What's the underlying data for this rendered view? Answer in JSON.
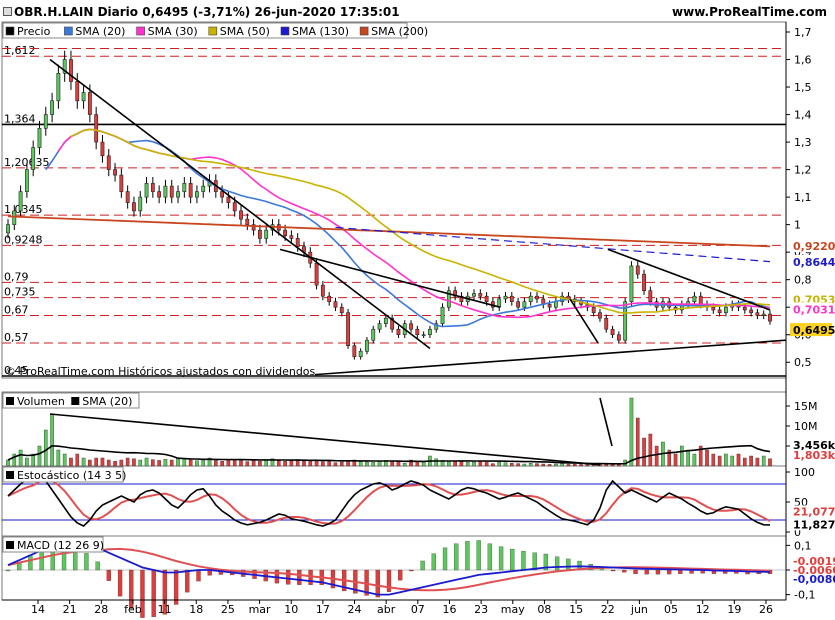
{
  "header": {
    "title": "OBR.H.LAIN Diario 0,6495 (-3,71%) 26-jun-2020 17:35:01",
    "site": "www.ProRealTime.com"
  },
  "price_panel": {
    "legend": [
      {
        "label": "Precio",
        "color": "#000000"
      },
      {
        "label": "SMA (20)",
        "color": "#3c78d8"
      },
      {
        "label": "SMA (30)",
        "color": "#ff33cc"
      },
      {
        "label": "SMA (50)",
        "color": "#c8b400"
      },
      {
        "label": "SMA (130)",
        "color": "#1a1ad0"
      },
      {
        "label": "SMA (200)",
        "color": "#c8461e"
      }
    ],
    "footnote": "© ProRealTime.com  Históricos ajustados con dividendos",
    "left_labels": [
      "1,612",
      "1,364",
      "1,20635",
      "1,0345",
      "0,9248",
      "0,79",
      "0,735",
      "0,67",
      "0,57",
      "0,45"
    ],
    "right_ticks": [
      "1,7",
      "1,6",
      "1,5",
      "1,4",
      "1,3",
      "1,2",
      "1,1",
      "1",
      "0,9",
      "0,8",
      "0,7",
      "0,6",
      "0,5"
    ],
    "tags": [
      {
        "text": "0,9220",
        "color": "#c8461e"
      },
      {
        "text": "0,8644",
        "color": "#1a1ad0"
      },
      {
        "text": "0,7053",
        "color": "#c8b400"
      },
      {
        "text": "0,7031",
        "color": "#ff33cc"
      },
      {
        "text": "0,6495",
        "color": "#000000",
        "bg": "#ffd21e"
      }
    ]
  },
  "volume_panel": {
    "legend": [
      {
        "label": "Volumen",
        "color": "#000000"
      },
      {
        "label": "SMA (20)",
        "color": "#000000"
      }
    ],
    "right_ticks": [
      "15M",
      "10M",
      "5M"
    ],
    "tags": [
      {
        "text": "3,456k",
        "color": "#000000"
      },
      {
        "text": "1,803k",
        "color": "#e03c3c"
      }
    ]
  },
  "stoch_panel": {
    "legend": [
      {
        "label": "Estocástico (14 3 5)",
        "color": "#000000"
      }
    ],
    "right_ticks": [
      "100",
      "50",
      "0"
    ],
    "tags": [
      {
        "text": "21,077",
        "color": "#e03c3c"
      },
      {
        "text": "11,827",
        "color": "#000000"
      }
    ]
  },
  "macd_panel": {
    "legend": [
      {
        "label": "MACD (12 26 9)",
        "color": "#000000"
      }
    ],
    "right_ticks": [
      "0,1",
      "0",
      "-0,1"
    ],
    "tags": [
      {
        "text": "-0,0019",
        "color": "#e03c3c"
      },
      {
        "text": "-0,0060",
        "color": "#e03c3c"
      },
      {
        "text": "-0,0080",
        "color": "#1a1ad0"
      }
    ]
  },
  "x_axis": [
    "14",
    "21",
    "28",
    "feb",
    "11",
    "18",
    "25",
    "mar",
    "10",
    "17",
    "24",
    "abr",
    "07",
    "16",
    "23",
    "may",
    "08",
    "15",
    "22",
    "jun",
    "05",
    "12",
    "19",
    "26"
  ],
  "chart_data": {
    "type": "candlestick",
    "title": "OBR.H.LAIN Diario",
    "ylim": [
      0.45,
      1.7
    ],
    "horizontal_levels": [
      1.612,
      1.364,
      1.20635,
      1.0345,
      0.9248,
      0.79,
      0.735,
      0.67,
      0.57,
      0.45
    ],
    "last_close": 0.6495,
    "change_pct": -3.71,
    "date": "26-jun-2020",
    "close_series": [
      1.0,
      1.05,
      1.12,
      1.2,
      1.28,
      1.35,
      1.4,
      1.45,
      1.55,
      1.6,
      1.52,
      1.45,
      1.48,
      1.4,
      1.3,
      1.25,
      1.2,
      1.18,
      1.12,
      1.08,
      1.05,
      1.1,
      1.15,
      1.12,
      1.1,
      1.14,
      1.1,
      1.12,
      1.15,
      1.1,
      1.12,
      1.14,
      1.16,
      1.12,
      1.1,
      1.08,
      1.05,
      1.02,
      1.0,
      0.98,
      0.95,
      0.98,
      1.0,
      0.98,
      0.96,
      0.95,
      0.92,
      0.9,
      0.86,
      0.78,
      0.74,
      0.72,
      0.7,
      0.68,
      0.56,
      0.52,
      0.54,
      0.58,
      0.62,
      0.64,
      0.66,
      0.62,
      0.6,
      0.64,
      0.62,
      0.6,
      0.6,
      0.62,
      0.64,
      0.7,
      0.76,
      0.74,
      0.72,
      0.74,
      0.75,
      0.74,
      0.72,
      0.7,
      0.73,
      0.74,
      0.72,
      0.7,
      0.72,
      0.74,
      0.73,
      0.71,
      0.7,
      0.72,
      0.74,
      0.73,
      0.72,
      0.71,
      0.7,
      0.68,
      0.66,
      0.62,
      0.6,
      0.58,
      0.72,
      0.85,
      0.82,
      0.76,
      0.72,
      0.7,
      0.72,
      0.7,
      0.69,
      0.71,
      0.72,
      0.74,
      0.71,
      0.7,
      0.69,
      0.68,
      0.7,
      0.71,
      0.7,
      0.69,
      0.68,
      0.67,
      0.675,
      0.6495
    ],
    "volume_series_millions": [
      1.5,
      3,
      4,
      2,
      3,
      5,
      9,
      13,
      4,
      3,
      2,
      3,
      2,
      1.5,
      2,
      2,
      1.5,
      1.2,
      1.5,
      2,
      1.8,
      1.5,
      2,
      1.6,
      1.4,
      1.7,
      1.5,
      2,
      1.8,
      1.5,
      1.3,
      1.5,
      2,
      1.4,
      1.2,
      1.6,
      1.5,
      1.3,
      1.1,
      1.4,
      1.2,
      1.5,
      1.8,
      1.3,
      1.2,
      1.5,
      1.6,
      1.2,
      1.4,
      1.3,
      1.1,
      1.2,
      0.8,
      1,
      1.2,
      1.5,
      1.1,
      1,
      0.9,
      1.2,
      1.4,
      1.1,
      1.3,
      0.7,
      1.5,
      1.1,
      1.2,
      2.5,
      1.8,
      1.4,
      1.2,
      1.3,
      1.1,
      0.9,
      1,
      1.2,
      0.9,
      0.6,
      1,
      0.8,
      0.7,
      0.6,
      0.5,
      0.7,
      0.6,
      0.5,
      0.4,
      0.5,
      0.6,
      0.4,
      0.5,
      0.4,
      0.3,
      0.5,
      0.4,
      0.5,
      0.4,
      0.5,
      1.5,
      17,
      12,
      7,
      8,
      5,
      6,
      4,
      3,
      5,
      4,
      3,
      5,
      4,
      3,
      2.5,
      3,
      2.5,
      3,
      2,
      2.5,
      2,
      2.5,
      1.803
    ],
    "stoch_percent": [
      60,
      70,
      80,
      88,
      90,
      92,
      85,
      70,
      55,
      40,
      25,
      15,
      10,
      20,
      35,
      45,
      50,
      55,
      60,
      55,
      50,
      62,
      68,
      70,
      65,
      55,
      45,
      40,
      50,
      62,
      70,
      72,
      60,
      45,
      35,
      28,
      20,
      15,
      12,
      14,
      16,
      20,
      25,
      30,
      28,
      22,
      20,
      18,
      15,
      12,
      10,
      14,
      20,
      35,
      50,
      62,
      70,
      75,
      80,
      82,
      78,
      70,
      74,
      80,
      85,
      82,
      78,
      70,
      65,
      60,
      55,
      62,
      70,
      74,
      72,
      68,
      65,
      60,
      55,
      58,
      62,
      65,
      60,
      55,
      50,
      42,
      35,
      28,
      22,
      20,
      18,
      15,
      12,
      20,
      40,
      70,
      85,
      75,
      65,
      70,
      65,
      60,
      55,
      50,
      58,
      65,
      60,
      55,
      48,
      42,
      35,
      30,
      32,
      38,
      42,
      40,
      38,
      30,
      22,
      16,
      12,
      11.827
    ],
    "macd_line": [
      0.02,
      0.04,
      0.06,
      0.08,
      0.1,
      0.11,
      0.11,
      0.1,
      0.09,
      0.07,
      0.05,
      0.03,
      0.01,
      0,
      -0.01,
      -0.01,
      -0.005,
      0,
      0,
      -0.005,
      -0.01,
      -0.015,
      -0.02,
      -0.025,
      -0.03,
      -0.035,
      -0.04,
      -0.045,
      -0.05,
      -0.06,
      -0.07,
      -0.08,
      -0.09,
      -0.1,
      -0.1,
      -0.09,
      -0.08,
      -0.07,
      -0.06,
      -0.05,
      -0.04,
      -0.03,
      -0.02,
      -0.015,
      -0.01,
      -0.005,
      0,
      0.005,
      0.01,
      0.012,
      0.014,
      0.015,
      0.014,
      0.012,
      0.01,
      0.008,
      0.006,
      0.005,
      0.004,
      0.003,
      0.002,
      0.001,
      0,
      -0.002,
      -0.003,
      -0.004,
      -0.006,
      -0.007,
      -0.008
    ],
    "macd_signal": -0.0019,
    "macd_histogram": -0.006,
    "macd_value": -0.008
  }
}
